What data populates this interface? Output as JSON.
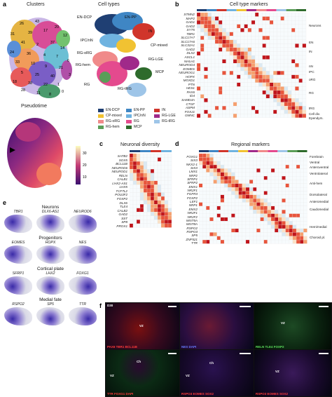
{
  "panel_a": {
    "letter": "a",
    "clusters_title": "Clusters",
    "celltypes_title": "Cell types",
    "pseudotime_title": "Pseudotime",
    "cluster_numbers": [
      "26",
      "43",
      "31",
      "39",
      "17",
      "20",
      "12",
      "41",
      "2",
      "37",
      "14",
      "24",
      "36",
      "4",
      "7",
      "6",
      "33",
      "10",
      "9",
      "21",
      "5",
      "25",
      "40",
      "18",
      "38",
      "22",
      "1",
      "28",
      "11",
      "8",
      "0",
      "3"
    ],
    "celltype_labels": [
      "EN-DCP",
      "EN-PP",
      "IN",
      "IPC/nN",
      "CP-mixed",
      "RG-oRG",
      "RG-LGE",
      "RG-hem",
      "MCP",
      "RG-tRG",
      "RG"
    ],
    "colorbar_ticks": [
      "30",
      "20",
      "10"
    ],
    "legend": [
      {
        "name": "EN-DCP",
        "color": "#1f3f73"
      },
      {
        "name": "EN-PP",
        "color": "#3f86c4"
      },
      {
        "name": "IN",
        "color": "#d0352b"
      },
      {
        "name": "CP-mixed",
        "color": "#f1c232"
      },
      {
        "name": "IPC/nN",
        "color": "#6fb3e0"
      },
      {
        "name": "RG-LGE",
        "color": "#a02a8a"
      },
      {
        "name": "RG-oRG",
        "color": "#f08a8a"
      },
      {
        "name": "RG",
        "color": "#e44a8e"
      },
      {
        "name": "RG-tRG",
        "color": "#9ec5e8"
      },
      {
        "name": "RG-hem",
        "color": "#5a9e58"
      },
      {
        "name": "MCP",
        "color": "#2e6b2c"
      }
    ]
  },
  "panel_b": {
    "letter": "b",
    "title": "Cell type markers",
    "genes": [
      "STMN2",
      "MAP2",
      "GAD1",
      "GAD2",
      "SYT5",
      "TBR1",
      "SLC17A7",
      "SLC17A6",
      "SLC32A1",
      "GAD2",
      "DLX2",
      "ASCL1",
      "NHLH1",
      "NEUROD4",
      "EOMES",
      "NEUROG1",
      "HOPX",
      "MOXD1",
      "PTN",
      "HES1",
      "PAX6",
      "ID4",
      "SAMD4A",
      "CTGF",
      "ASPM",
      "FOXJ1",
      "GMNC"
    ],
    "categories": [
      "Neurons",
      "EN",
      "IN",
      "nN",
      "IPC",
      "oRG",
      "RG",
      "tRG",
      "Cell div.",
      "Ependym."
    ]
  },
  "panel_c": {
    "letter": "c",
    "title": "Neuronal diversity",
    "genes": [
      "SATB2",
      "SOX5",
      "BCL11B",
      "NEUROD6",
      "NEUROD1",
      "RELN",
      "CALB1",
      "LHX2-AS1",
      "LHX5",
      "TCF7L2",
      "POU3F2",
      "FOXP2",
      "DLX6",
      "TLE4",
      "CALB2",
      "GAD2",
      "SST",
      "SP8",
      "PROX1"
    ]
  },
  "panel_d": {
    "letter": "d",
    "title": "Regional markers",
    "genes": [
      "FOXG1",
      "SIX3",
      "NKX2-1",
      "SIX3",
      "LMX1",
      "NRP2",
      "SFRP1",
      "SFRP2",
      "EMX1",
      "NR2F1",
      "FGFR3",
      "FOXP2",
      "LEF1",
      "NRP1",
      "EMX2",
      "NR2F1",
      "NR2F2",
      "WNT5A",
      "WNT8A",
      "RSPO2",
      "RSPO3",
      "SP5",
      "ZNF521",
      "TTR"
    ],
    "categories": [
      "Forebrain",
      "Ventral",
      "Anteroventral",
      "Ventrolateral",
      "Anti-hem",
      "Dorsolateral",
      "Anteromedial",
      "Caudomedial",
      "Hem/medial",
      "Choroid pl."
    ]
  },
  "panel_e": {
    "letter": "e",
    "groups": [
      {
        "title": "Neurons",
        "genes": [
          "TBR1",
          "DLX6-AS1",
          "NEUROD6"
        ]
      },
      {
        "title": "Progenitors",
        "genes": [
          "EOMES",
          "HOPX",
          "NES"
        ]
      },
      {
        "title": "Cortical plate",
        "genes": [
          "SFRP1",
          "LHX2",
          "FOXG1"
        ]
      },
      {
        "title": "Medial fate",
        "genes": [
          "RSPO2",
          "SP5",
          "TTR"
        ]
      }
    ]
  },
  "panel_f": {
    "letter": "f",
    "day_label": "D30",
    "image_labels": [
      {
        "text": "PAX6 TBR1 BCL11B",
        "color": "#ff3b3b"
      },
      {
        "text": "NES DAPI",
        "color": "#6a7bff"
      },
      {
        "text": "RELN TLE4 FOXP2",
        "color": "#5de05d"
      },
      {
        "text": "TTR FOXG1 DAPI",
        "color": "#ff3b3b"
      },
      {
        "text": "RSPO3 EOMES SOX2",
        "color": "#ff3b3b"
      },
      {
        "text": "RSPO3 EOMES SOX2",
        "color": "#ff3b3b"
      }
    ],
    "region_labels": [
      "VZ",
      "VZ",
      "Ch",
      "VZ",
      "Ch",
      "VZ",
      "VZ"
    ]
  }
}
